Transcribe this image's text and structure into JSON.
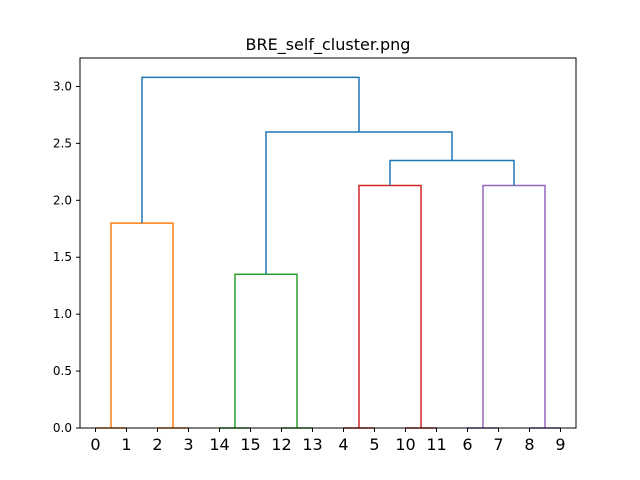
{
  "chart_data": {
    "type": "dendrogram",
    "title": "BRE_self_cluster.png",
    "xlabel": "",
    "ylabel": "",
    "ylim": [
      0,
      3.25
    ],
    "yticks": [
      0.0,
      0.5,
      1.0,
      1.5,
      2.0,
      2.5,
      3.0
    ],
    "ytick_labels": [
      "0.0",
      "0.5",
      "1.0",
      "1.5",
      "2.0",
      "2.5",
      "3.0"
    ],
    "grid": false,
    "leaves": [
      "0",
      "1",
      "2",
      "3",
      "14",
      "15",
      "12",
      "13",
      "4",
      "5",
      "10",
      "11",
      "6",
      "7",
      "8",
      "9"
    ],
    "links": [
      {
        "left": [
          0,
          0
        ],
        "right": [
          1,
          0
        ],
        "height": 0.0,
        "color": "#ff7f0e"
      },
      {
        "left": [
          2,
          0
        ],
        "right": [
          3,
          0
        ],
        "height": 0.0,
        "color": "#ff7f0e"
      },
      {
        "left": [
          0.5,
          0
        ],
        "right": [
          2.5,
          0
        ],
        "height": 1.8,
        "color": "#ff7f0e"
      },
      {
        "left": [
          4,
          0
        ],
        "right": [
          5,
          0
        ],
        "height": 0.0,
        "color": "#2ca02c"
      },
      {
        "left": [
          6,
          0
        ],
        "right": [
          7,
          0
        ],
        "height": 0.0,
        "color": "#2ca02c"
      },
      {
        "left": [
          4.5,
          0
        ],
        "right": [
          6.5,
          0
        ],
        "height": 1.35,
        "color": "#2ca02c"
      },
      {
        "left": [
          8,
          0
        ],
        "right": [
          9,
          0
        ],
        "height": 0.0,
        "color": "#d62728"
      },
      {
        "left": [
          10,
          0
        ],
        "right": [
          11,
          0
        ],
        "height": 0.0,
        "color": "#d62728"
      },
      {
        "left": [
          8.5,
          0
        ],
        "right": [
          10.5,
          0
        ],
        "height": 2.13,
        "color": "#d62728"
      },
      {
        "left": [
          12,
          0
        ],
        "right": [
          13,
          0
        ],
        "height": 0.0,
        "color": "#9467bd"
      },
      {
        "left": [
          14,
          0
        ],
        "right": [
          15,
          0
        ],
        "height": 0.0,
        "color": "#9467bd"
      },
      {
        "left": [
          12.5,
          0
        ],
        "right": [
          14.5,
          0
        ],
        "height": 2.13,
        "color": "#9467bd"
      },
      {
        "left": [
          9.5,
          2.13
        ],
        "right": [
          13.5,
          2.13
        ],
        "height": 2.35,
        "color": "#1f77b4"
      },
      {
        "left": [
          5.5,
          1.35
        ],
        "right": [
          11.5,
          2.35
        ],
        "height": 2.6,
        "color": "#1f77b4"
      },
      {
        "left": [
          1.5,
          1.8
        ],
        "right": [
          8.5,
          2.6
        ],
        "height": 3.08,
        "color": "#1f77b4"
      }
    ]
  }
}
